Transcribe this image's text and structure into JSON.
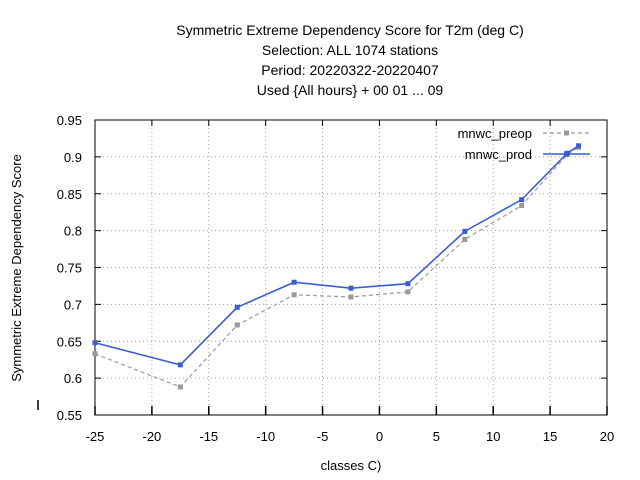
{
  "chart_data": {
    "type": "line",
    "title_lines": [
      "Symmetric Extreme Dependency Score  for T2m (deg C)",
      "Selection: ALL    1074 stations",
      "Period: 20220322-20220407",
      "Used {All hours} + 00 01 ... 09"
    ],
    "xlabel": "classes C)",
    "ylabel": "Symmetric Extreme Dependency Score",
    "xlim": [
      -25,
      20
    ],
    "ylim": [
      0.55,
      0.95
    ],
    "xticks": [
      -25,
      -20,
      -15,
      -10,
      -5,
      0,
      5,
      10,
      15,
      20
    ],
    "yticks": [
      0.55,
      0.6,
      0.65,
      0.7,
      0.75,
      0.8,
      0.85,
      0.9,
      0.95
    ],
    "xtick_labels": [
      "-25",
      "-20",
      "-15",
      "-10",
      "-5",
      "0",
      "5",
      "10",
      "15",
      "20"
    ],
    "ytick_labels": [
      "0.55",
      "0.6",
      "0.65",
      "0.7",
      "0.75",
      "0.8",
      "0.85",
      "0.9",
      "0.95"
    ],
    "grid": true,
    "legend_position": "top-right",
    "series": [
      {
        "name": "mnwc_preop",
        "color": "#999999",
        "dash": true,
        "points": [
          [
            -25,
            0.633
          ],
          [
            -17.5,
            0.588
          ],
          [
            -12.5,
            0.672
          ],
          [
            -7.5,
            0.713
          ],
          [
            -2.5,
            0.71
          ],
          [
            2.5,
            0.717
          ],
          [
            7.5,
            0.788
          ],
          [
            12.5,
            0.834
          ],
          [
            16.5,
            0.903
          ],
          [
            17.5,
            0.913
          ]
        ]
      },
      {
        "name": "mnwc_prod",
        "color": "#3a5fcd",
        "dash": false,
        "points": [
          [
            -25,
            0.648
          ],
          [
            -17.5,
            0.618
          ],
          [
            -12.5,
            0.696
          ],
          [
            -7.5,
            0.73
          ],
          [
            -2.5,
            0.722
          ],
          [
            2.5,
            0.728
          ],
          [
            7.5,
            0.799
          ],
          [
            12.5,
            0.842
          ],
          [
            16.5,
            0.905
          ],
          [
            17.5,
            0.915
          ]
        ]
      }
    ]
  }
}
